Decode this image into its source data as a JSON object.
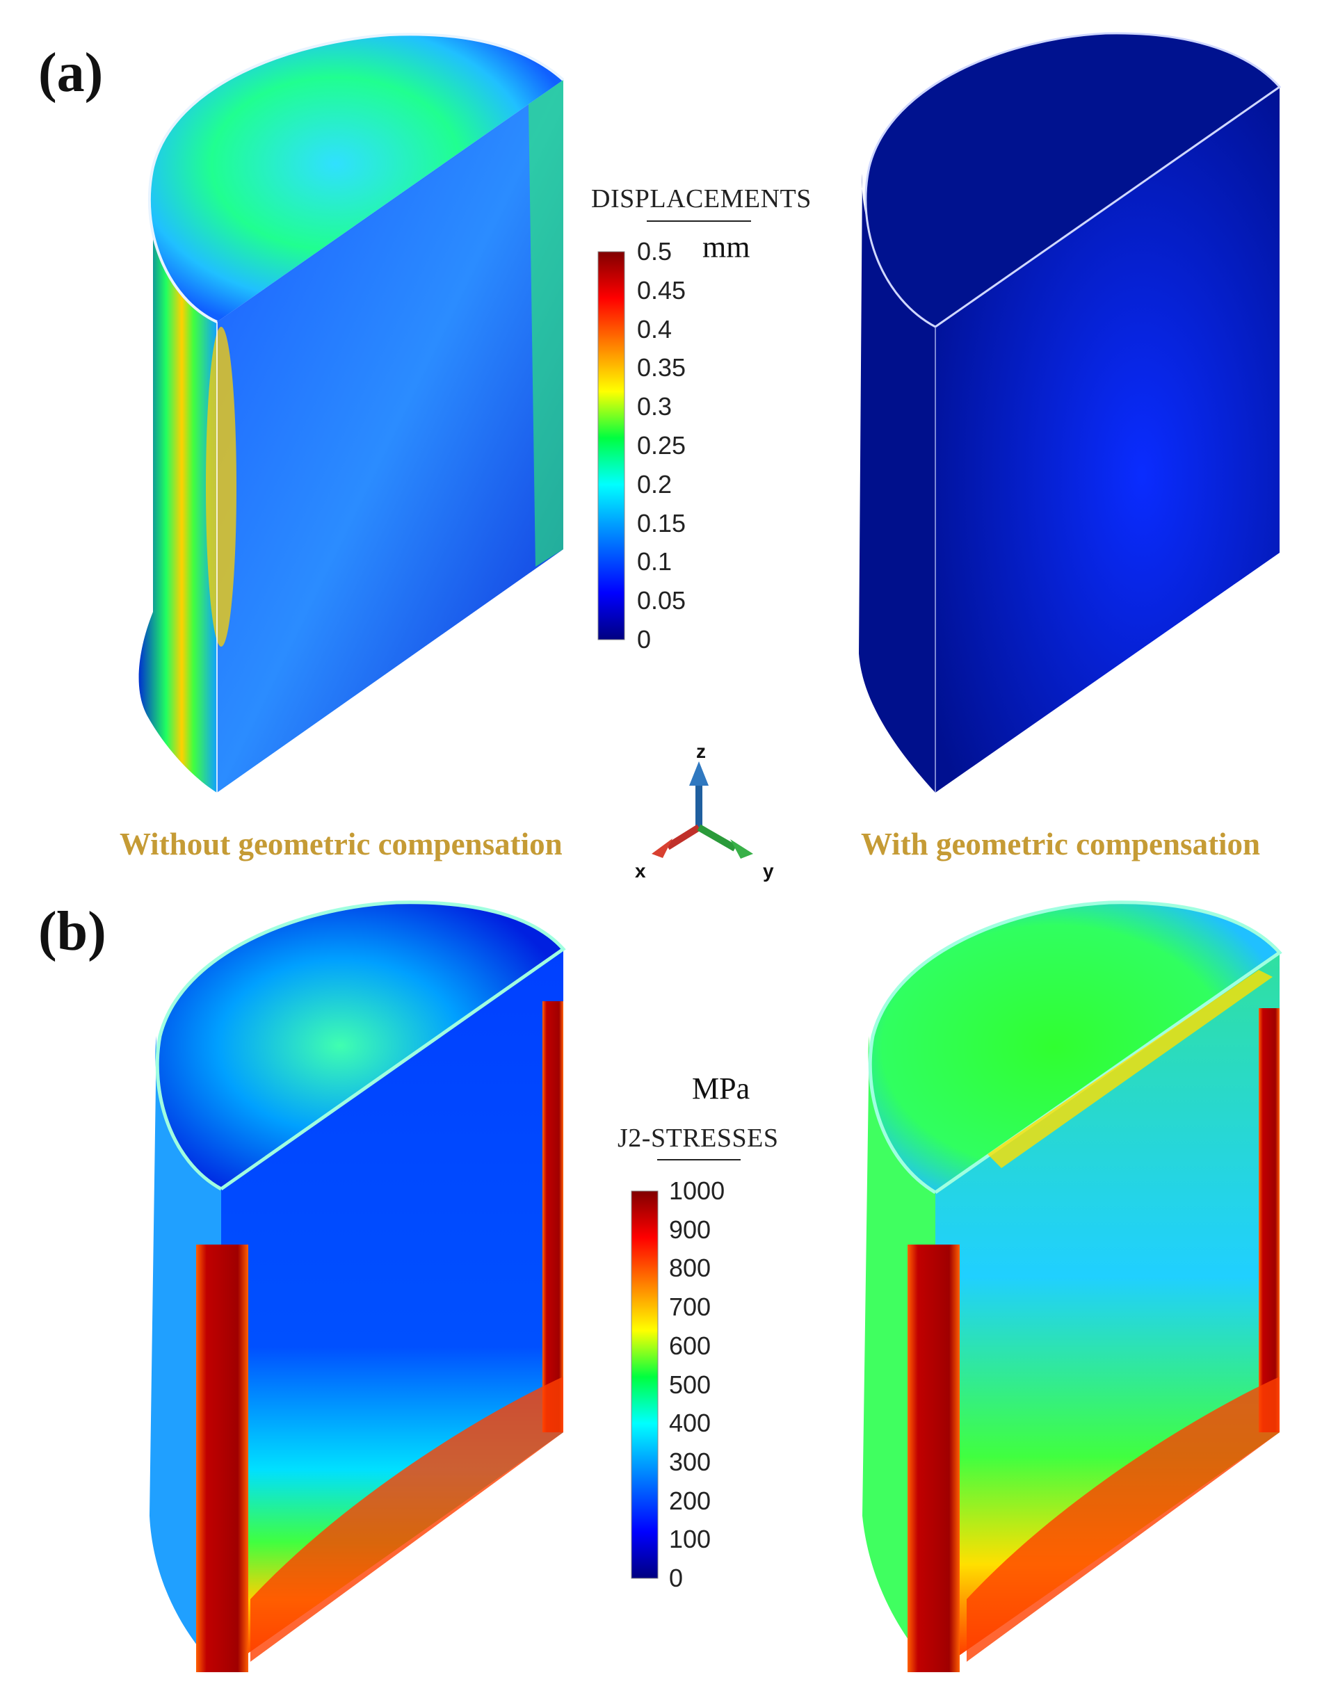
{
  "panels": {
    "a": {
      "label": "(a)"
    },
    "b": {
      "label": "(b)"
    }
  },
  "captions": {
    "without": "Without geometric compensation",
    "with": "With geometric compensation"
  },
  "legend_displacements": {
    "title": "DISPLACEMENTS",
    "unit": "mm",
    "ticks": [
      "0.5",
      "0.45",
      "0.4",
      "0.35",
      "0.3",
      "0.25",
      "0.2",
      "0.15",
      "0.1",
      "0.05",
      "0"
    ],
    "range": [
      0,
      0.5
    ]
  },
  "legend_stresses": {
    "title": "J2-STRESSES",
    "unit": "MPa",
    "ticks": [
      "1000",
      "900",
      "800",
      "700",
      "600",
      "500",
      "400",
      "300",
      "200",
      "100",
      "0"
    ],
    "range": [
      0,
      1000
    ]
  },
  "axes_triad": {
    "z": "z",
    "x": "x",
    "y": "y"
  },
  "colors": {
    "caption": "#c59b35",
    "colormap": [
      "#000080",
      "#0000ff",
      "#00a0ff",
      "#00ffff",
      "#00ff40",
      "#ffff00",
      "#ff8000",
      "#ff0000",
      "#800000"
    ]
  }
}
